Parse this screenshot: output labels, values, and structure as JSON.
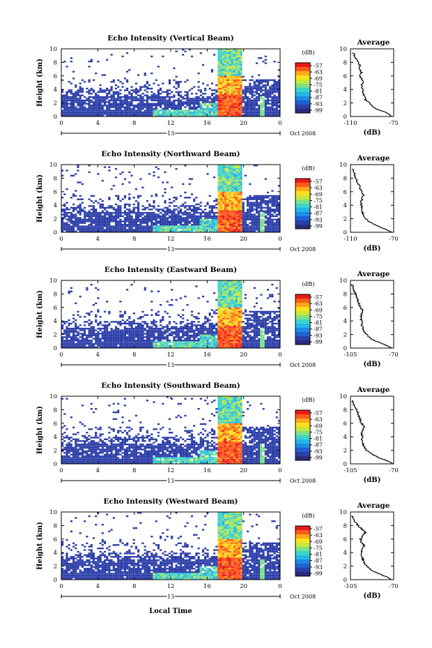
{
  "figure": {
    "bottom_label": "Local Time",
    "date_label": "Oct 2008",
    "day_label": "13",
    "ylabel": "Height (km)",
    "avg_title": "Average",
    "avg_xlabel": "(dB)",
    "cbar_label": "(dB)"
  },
  "colors": {
    "colormap": [
      "#2b2b7a",
      "#2c3ea8",
      "#2060d0",
      "#1f8be0",
      "#25b6e8",
      "#3fd3c8",
      "#7fe08a",
      "#c8e83a",
      "#ffe020",
      "#ffa818",
      "#ff5a1a",
      "#e81a1a"
    ]
  },
  "chart_data": [
    {
      "type": "heatmap",
      "title": "Echo Intensity (Vertical Beam)",
      "ylabel": "Height (km)",
      "x": [
        0,
        4,
        8,
        12,
        16,
        20,
        0
      ],
      "x_ticks": [
        "0",
        "4",
        "8",
        "12",
        "16",
        "20",
        "0"
      ],
      "y_ticks": [
        "0",
        "2",
        "4",
        "6",
        "8",
        "10"
      ],
      "ylim": [
        0,
        10
      ],
      "xlim": [
        0,
        24
      ],
      "colorbar": {
        "label": "(dB)",
        "ticks": [
          "-57",
          "-63",
          "-69",
          "-75",
          "-81",
          "-87",
          "-93",
          "-99"
        ],
        "range": [
          -99,
          -57
        ]
      },
      "average_profile": {
        "title": "Average",
        "xlabel": "(dB)",
        "xlim": [
          -110,
          -75
        ],
        "x_ticks": [
          "-110",
          "-75"
        ],
        "y_ticks": [
          "0",
          "2",
          "4",
          "6",
          "8",
          "10"
        ],
        "height_km": [
          0,
          0.5,
          1,
          1.5,
          2,
          2.5,
          3,
          3.5,
          4,
          4.5,
          5,
          5.5,
          6,
          6.5,
          7,
          7.5,
          8,
          8.5,
          9,
          9.5
        ],
        "values_db": [
          -77,
          -80,
          -88,
          -92,
          -95,
          -98,
          -99,
          -100,
          -100,
          -101,
          -100,
          -101,
          -102,
          -101,
          -103,
          -102,
          -104,
          -105,
          -107,
          -108
        ]
      }
    },
    {
      "type": "heatmap",
      "title": "Echo Intensity (Northward Beam)",
      "ylabel": "Height (km)",
      "x": [
        0,
        4,
        8,
        12,
        16,
        20,
        0
      ],
      "x_ticks": [
        "0",
        "4",
        "8",
        "12",
        "16",
        "20",
        "0"
      ],
      "y_ticks": [
        "0",
        "2",
        "4",
        "6",
        "8",
        "10"
      ],
      "ylim": [
        0,
        10
      ],
      "xlim": [
        0,
        24
      ],
      "colorbar": {
        "label": "(dB)",
        "ticks": [
          "-57",
          "-63",
          "-69",
          "-75",
          "-81",
          "-87",
          "-93",
          "-99"
        ],
        "range": [
          -99,
          -57
        ]
      },
      "average_profile": {
        "title": "Average",
        "xlabel": "(dB)",
        "xlim": [
          -110,
          -70
        ],
        "x_ticks": [
          "-110",
          "-70"
        ],
        "y_ticks": [
          "0",
          "2",
          "4",
          "6",
          "8",
          "10"
        ],
        "height_km": [
          0,
          0.5,
          1,
          1.5,
          2,
          2.5,
          3,
          3.5,
          4,
          4.5,
          5,
          5.5,
          6,
          6.5,
          7,
          7.5,
          8,
          8.5,
          9,
          9.5
        ],
        "values_db": [
          -72,
          -78,
          -86,
          -92,
          -96,
          -98,
          -99,
          -99,
          -100,
          -100,
          -99,
          -98,
          -100,
          -101,
          -102,
          -104,
          -105,
          -106,
          -107,
          -108
        ]
      }
    },
    {
      "type": "heatmap",
      "title": "Echo Intensity (Eastward Beam)",
      "ylabel": "Height (km)",
      "x": [
        0,
        4,
        8,
        12,
        16,
        20,
        0
      ],
      "x_ticks": [
        "0",
        "4",
        "8",
        "12",
        "16",
        "20",
        "0"
      ],
      "y_ticks": [
        "0",
        "2",
        "4",
        "6",
        "8",
        "10"
      ],
      "ylim": [
        0,
        10
      ],
      "xlim": [
        0,
        24
      ],
      "colorbar": {
        "label": "(dB)",
        "ticks": [
          "-57",
          "-63",
          "-69",
          "-75",
          "-81",
          "-87",
          "-93",
          "-99"
        ],
        "range": [
          -99,
          -57
        ]
      },
      "average_profile": {
        "title": "Average",
        "xlabel": "(dB)",
        "xlim": [
          -105,
          -70
        ],
        "x_ticks": [
          "-105",
          "-70"
        ],
        "y_ticks": [
          "0",
          "2",
          "4",
          "6",
          "8",
          "10"
        ],
        "height_km": [
          0,
          0.5,
          1,
          1.5,
          2,
          2.5,
          3,
          3.5,
          4,
          4.5,
          5,
          5.5,
          6,
          6.5,
          7,
          7.5,
          8,
          8.5,
          9,
          9.5
        ],
        "values_db": [
          -72,
          -77,
          -84,
          -89,
          -92,
          -94,
          -95,
          -96,
          -96,
          -97,
          -96,
          -95,
          -97,
          -98,
          -99,
          -100,
          -101,
          -102,
          -103,
          -104
        ]
      }
    },
    {
      "type": "heatmap",
      "title": "Echo Intensity (Southward Beam)",
      "ylabel": "Height (km)",
      "x": [
        0,
        4,
        8,
        12,
        16,
        20,
        0
      ],
      "x_ticks": [
        "0",
        "4",
        "8",
        "12",
        "16",
        "20",
        "0"
      ],
      "y_ticks": [
        "0",
        "2",
        "4",
        "6",
        "8",
        "10"
      ],
      "ylim": [
        0,
        10
      ],
      "xlim": [
        0,
        24
      ],
      "colorbar": {
        "label": "(dB)",
        "ticks": [
          "-57",
          "-63",
          "-69",
          "-75",
          "-81",
          "-87",
          "-93",
          "-99"
        ],
        "range": [
          -99,
          -57
        ]
      },
      "average_profile": {
        "title": "Average",
        "xlabel": "(dB)",
        "xlim": [
          -105,
          -70
        ],
        "x_ticks": [
          "-105",
          "-70"
        ],
        "y_ticks": [
          "0",
          "2",
          "4",
          "6",
          "8",
          "10"
        ],
        "height_km": [
          0,
          0.5,
          1,
          1.5,
          2,
          2.5,
          3,
          3.5,
          4,
          4.5,
          5,
          5.5,
          6,
          6.5,
          7,
          7.5,
          8,
          8.5,
          9,
          9.5
        ],
        "values_db": [
          -71,
          -76,
          -83,
          -88,
          -92,
          -94,
          -95,
          -96,
          -95,
          -96,
          -95,
          -94,
          -96,
          -97,
          -98,
          -99,
          -100,
          -102,
          -103,
          -104
        ]
      }
    },
    {
      "type": "heatmap",
      "title": "Echo Intensity (Westward Beam)",
      "ylabel": "Height (km)",
      "x": [
        0,
        4,
        8,
        12,
        16,
        20,
        0
      ],
      "x_ticks": [
        "0",
        "4",
        "8",
        "12",
        "16",
        "20",
        "0"
      ],
      "y_ticks": [
        "0",
        "2",
        "4",
        "6",
        "8",
        "10"
      ],
      "ylim": [
        0,
        10
      ],
      "xlim": [
        0,
        24
      ],
      "colorbar": {
        "label": "(dB)",
        "ticks": [
          "-57",
          "-63",
          "-69",
          "-75",
          "-81",
          "-87",
          "-93",
          "-99"
        ],
        "range": [
          -99,
          -57
        ]
      },
      "average_profile": {
        "title": "Average",
        "xlabel": "(dB)",
        "xlim": [
          -105,
          -70
        ],
        "x_ticks": [
          "-105",
          "-70"
        ],
        "y_ticks": [
          "0",
          "2",
          "4",
          "6",
          "8",
          "10"
        ],
        "height_km": [
          0,
          0.5,
          1,
          1.5,
          2,
          2.5,
          3,
          3.5,
          4,
          4.5,
          5,
          5.5,
          6,
          6.5,
          7,
          7.5,
          8,
          8.5,
          9,
          9.5
        ],
        "values_db": [
          -72,
          -77,
          -84,
          -89,
          -92,
          -94,
          -95,
          -96,
          -96,
          -95,
          -94,
          -96,
          -97,
          -95,
          -93,
          -96,
          -99,
          -101,
          -103,
          -104
        ]
      }
    }
  ]
}
